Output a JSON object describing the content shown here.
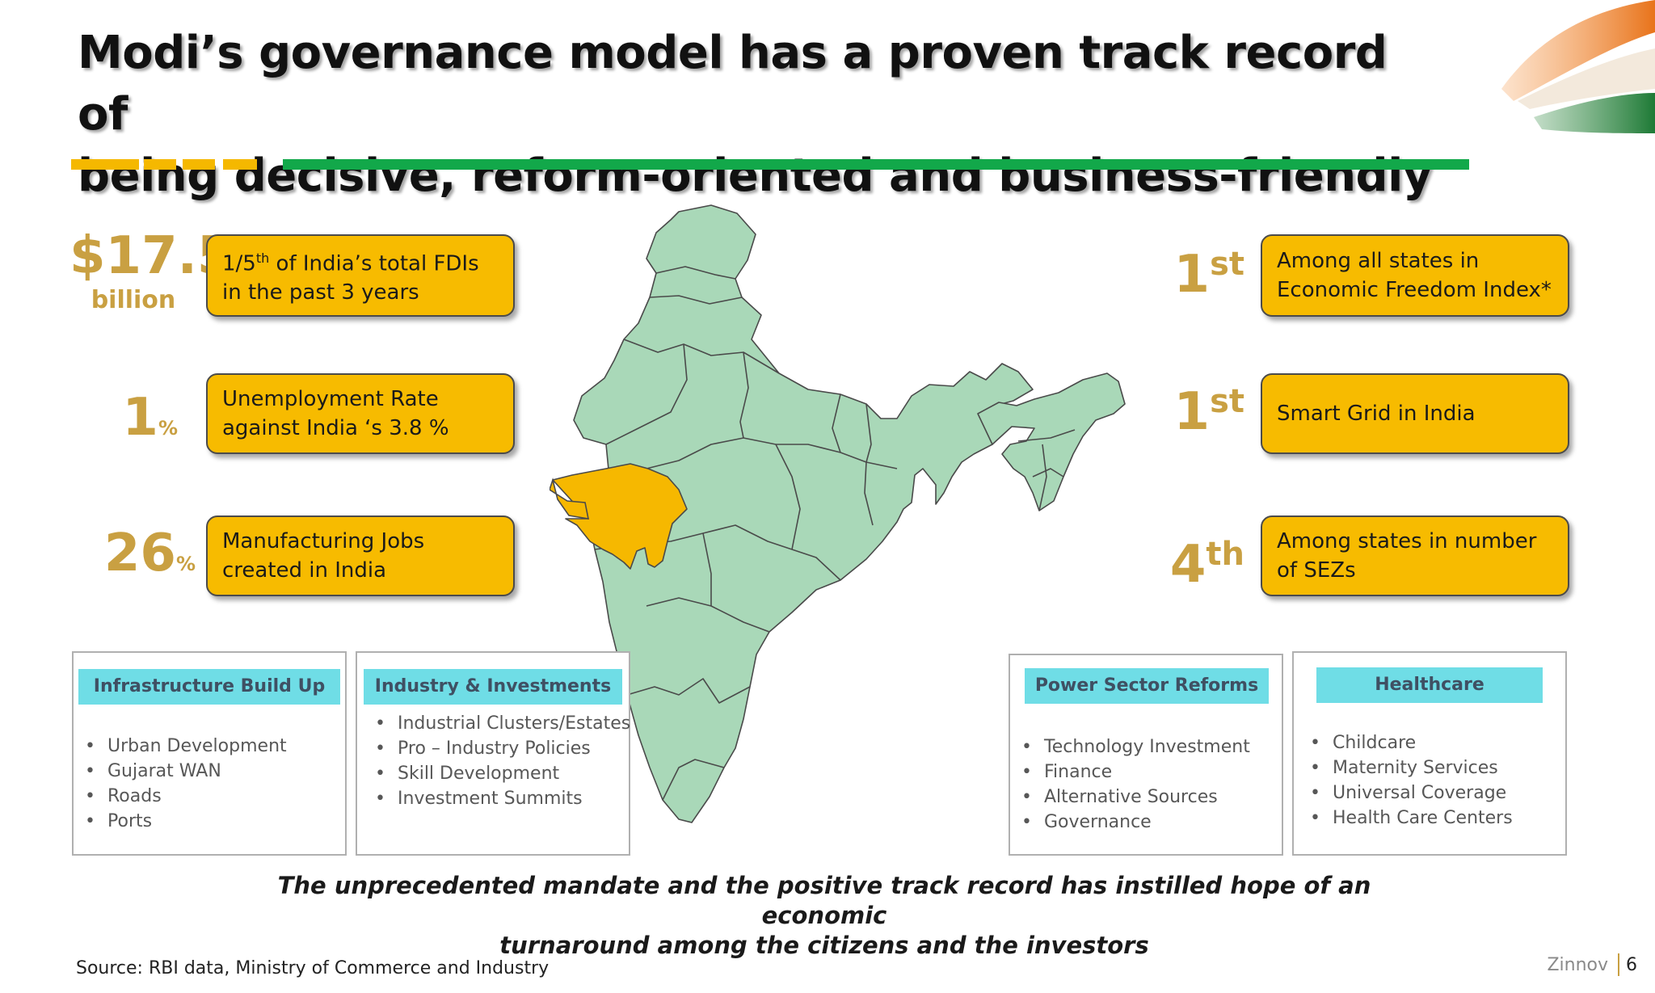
{
  "title": {
    "line1": "Modi’s governance model has a proven track record of",
    "line2": "being decisive, reform-oriented and business-friendly"
  },
  "colors": {
    "accent_yellow": "#f7bb00",
    "accent_green": "#12a84a",
    "stat_gold": "#c9a042",
    "map_fill": "#a9d8b8",
    "highlight_state": "#f6b800",
    "card_header": "#6fdde6"
  },
  "left_stats": [
    {
      "value": "$17.5",
      "unit": "billion",
      "box_pre": "1/5",
      "box_sup": "th",
      "box_post": " of India’s total FDIs in the past 3 years"
    },
    {
      "value": "1",
      "unit": "%",
      "box": "Unemployment Rate against India ‘s 3.8 %"
    },
    {
      "value": "26",
      "unit": "%",
      "box": "Manufacturing Jobs created in India"
    }
  ],
  "right_stats": [
    {
      "rank": "1",
      "suffix": "st",
      "box": "Among all states in Economic Freedom Index*"
    },
    {
      "rank": "1",
      "suffix": "st",
      "box": "Smart Grid in India"
    },
    {
      "rank": "4",
      "suffix": "th",
      "box": "Among states in number of SEZs"
    }
  ],
  "cards": [
    {
      "title": "Infrastructure Build Up",
      "items": [
        "Urban Development",
        "Gujarat WAN",
        "Roads",
        "Ports"
      ]
    },
    {
      "title": "Industry & Investments",
      "items": [
        "Industrial Clusters/Estates",
        "Pro – Industry Policies",
        "Skill Development",
        "Investment Summits"
      ]
    },
    {
      "title": "Power Sector Reforms",
      "items": [
        "Technology Investment",
        "Finance",
        "Alternative Sources",
        "Governance"
      ]
    },
    {
      "title": "Healthcare",
      "items": [
        "Childcare",
        "Maternity Services",
        "Universal Coverage",
        "Health Care Centers"
      ]
    }
  ],
  "conclusion": {
    "line1": "The unprecedented mandate and the positive track record has instilled hope of an economic",
    "line2": "turnaround among the citizens and the investors"
  },
  "footer": {
    "source": "Source: RBI data, Ministry of Commerce and Industry",
    "brand": "Zinnov",
    "page": "6"
  }
}
